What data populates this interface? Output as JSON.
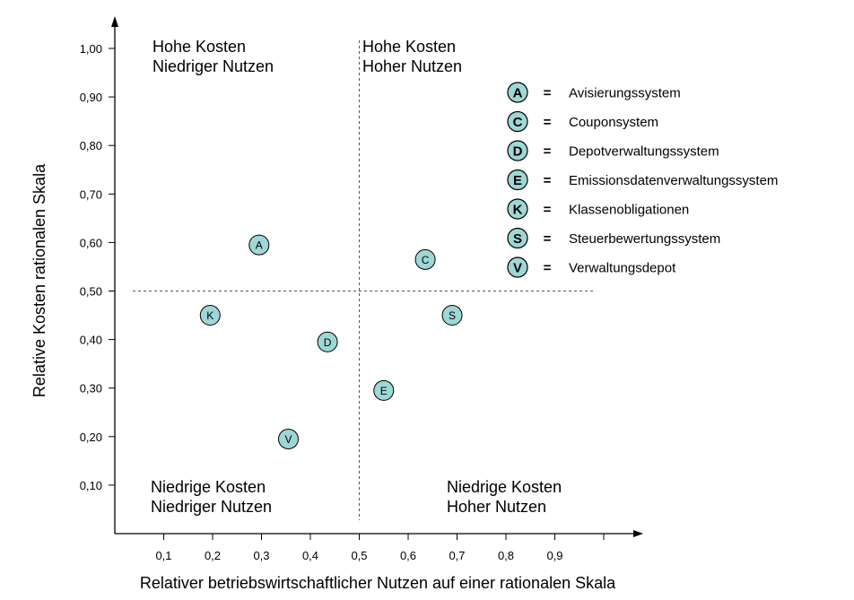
{
  "chart_data": {
    "type": "scatter",
    "xlabel": "Relativer betriebswirtschaftlicher Nutzen auf einer rationalen Skala",
    "ylabel": "Relative Kosten  rationalen Skala",
    "xlim": [
      0,
      1.0
    ],
    "ylim": [
      0,
      1.1
    ],
    "x_ticks": [
      0.1,
      0.2,
      0.3,
      0.4,
      0.5,
      0.6,
      0.7,
      0.8,
      0.9
    ],
    "x_tick_labels": [
      "0,1",
      "0,2",
      "0,3",
      "0,4",
      "0,5",
      "0,6",
      "0,7",
      "0,8",
      "0,9"
    ],
    "y_ticks": [
      0.1,
      0.2,
      0.3,
      0.4,
      0.5,
      0.6,
      0.7,
      0.8,
      0.9,
      1.0
    ],
    "y_tick_labels": [
      "0,10",
      "0,20",
      "0,30",
      "0,40",
      "0,50",
      "0,60",
      "0,70",
      "0,80",
      "0,90",
      "1,00"
    ],
    "divider_x": 0.5,
    "divider_y": 0.5,
    "points": [
      {
        "key": "A",
        "x": 0.295,
        "y": 0.595
      },
      {
        "key": "C",
        "x": 0.635,
        "y": 0.565
      },
      {
        "key": "D",
        "x": 0.435,
        "y": 0.395
      },
      {
        "key": "E",
        "x": 0.55,
        "y": 0.295
      },
      {
        "key": "K",
        "x": 0.195,
        "y": 0.45
      },
      {
        "key": "S",
        "x": 0.69,
        "y": 0.45
      },
      {
        "key": "V",
        "x": 0.355,
        "y": 0.195
      }
    ],
    "quadrants": {
      "top_left": [
        "Hohe Kosten",
        "Niedriger Nutzen"
      ],
      "top_right": [
        "Hohe Kosten",
        "Hoher Nutzen"
      ],
      "bottom_left": [
        "Niedrige Kosten",
        "Niedriger Nutzen"
      ],
      "bottom_right": [
        "Niedrige Kosten",
        "Hoher Nutzen"
      ]
    },
    "legend": {
      "placement": "top-right",
      "separator": "=",
      "entries": [
        {
          "key": "A",
          "label": "Avisierungssystem"
        },
        {
          "key": "C",
          "label": "Couponsystem"
        },
        {
          "key": "D",
          "label": "Depotverwaltungssystem"
        },
        {
          "key": "E",
          "label": "Emissionsdatenverwaltungssystem"
        },
        {
          "key": "K",
          "label": "Klassenobligationen"
        },
        {
          "key": "S",
          "label": "Steuerbewertungssystem"
        },
        {
          "key": "V",
          "label": "Verwaltungsdepot"
        }
      ]
    },
    "colors": {
      "marker_fill": "#9fd6d6",
      "axis": "#000000",
      "divider": "#555555"
    },
    "grid": false
  }
}
